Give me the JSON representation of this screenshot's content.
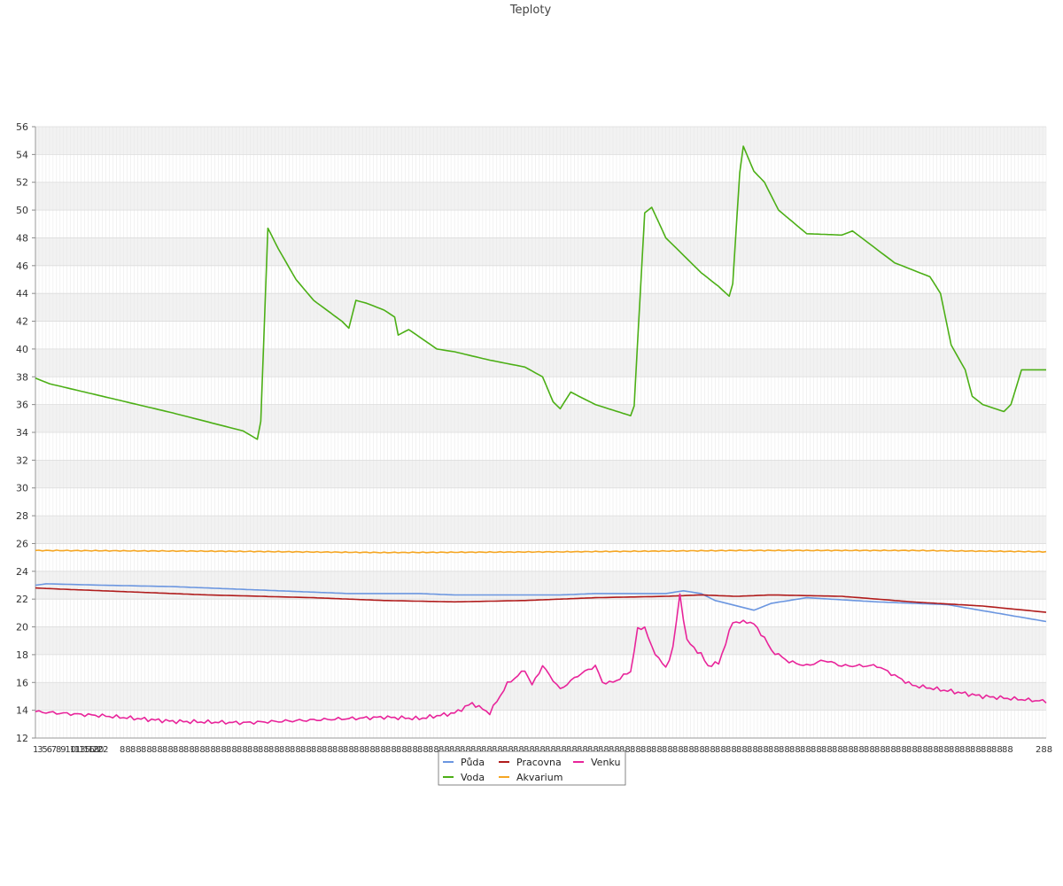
{
  "chart_data": {
    "type": "line",
    "title": "Teploty",
    "xlabel": "",
    "ylabel": "",
    "ylim": [
      12,
      56
    ],
    "yticks": [
      12,
      14,
      16,
      18,
      20,
      22,
      24,
      26,
      28,
      30,
      32,
      34,
      36,
      38,
      40,
      42,
      44,
      46,
      48,
      50,
      52,
      54,
      56
    ],
    "grid": true,
    "legend_position": "bottom",
    "x_points": 288,
    "x_tick_labels": [
      "1",
      "3",
      "5",
      "6",
      "7",
      "8",
      "9",
      "10",
      "11",
      "13",
      "15",
      "16",
      "18",
      "20",
      "22",
      "288"
    ],
    "series": [
      {
        "name": "Půda",
        "color": "#6b96e0",
        "key_points": [
          [
            1,
            23.0
          ],
          [
            4,
            23.1
          ],
          [
            20,
            23.0
          ],
          [
            40,
            22.9
          ],
          [
            60,
            22.7
          ],
          [
            90,
            22.4
          ],
          [
            110,
            22.4
          ],
          [
            120,
            22.3
          ],
          [
            150,
            22.3
          ],
          [
            160,
            22.4
          ],
          [
            180,
            22.4
          ],
          [
            185,
            22.6
          ],
          [
            190,
            22.4
          ],
          [
            194,
            21.9
          ],
          [
            205,
            21.2
          ],
          [
            210,
            21.7
          ],
          [
            220,
            22.1
          ],
          [
            240,
            21.8
          ],
          [
            260,
            21.6
          ],
          [
            290,
            20.3
          ]
        ]
      },
      {
        "name": "Pracovna",
        "color": "#b01c1c",
        "key_points": [
          [
            1,
            22.8
          ],
          [
            10,
            22.7
          ],
          [
            30,
            22.5
          ],
          [
            50,
            22.3
          ],
          [
            80,
            22.1
          ],
          [
            100,
            21.9
          ],
          [
            120,
            21.8
          ],
          [
            140,
            21.9
          ],
          [
            160,
            22.1
          ],
          [
            180,
            22.2
          ],
          [
            190,
            22.3
          ],
          [
            200,
            22.2
          ],
          [
            210,
            22.3
          ],
          [
            230,
            22.2
          ],
          [
            250,
            21.8
          ],
          [
            270,
            21.5
          ],
          [
            290,
            21.0
          ]
        ]
      },
      {
        "name": "Venku",
        "color": "#e8249a",
        "key_points": [
          [
            1,
            13.9
          ],
          [
            20,
            13.6
          ],
          [
            40,
            13.2
          ],
          [
            60,
            13.1
          ],
          [
            80,
            13.3
          ],
          [
            100,
            13.5
          ],
          [
            110,
            13.4
          ],
          [
            120,
            13.8
          ],
          [
            125,
            14.5
          ],
          [
            130,
            13.8
          ],
          [
            135,
            15.9
          ],
          [
            140,
            16.9
          ],
          [
            142,
            15.8
          ],
          [
            145,
            17.2
          ],
          [
            150,
            15.5
          ],
          [
            155,
            16.5
          ],
          [
            160,
            17.2
          ],
          [
            162,
            16.0
          ],
          [
            165,
            16.0
          ],
          [
            170,
            16.8
          ],
          [
            172,
            19.8
          ],
          [
            174,
            20.0
          ],
          [
            176,
            18.5
          ],
          [
            180,
            17.0
          ],
          [
            182,
            18.5
          ],
          [
            184,
            22.3
          ],
          [
            186,
            19.0
          ],
          [
            190,
            18.0
          ],
          [
            192,
            17.2
          ],
          [
            195,
            17.4
          ],
          [
            197,
            18.8
          ],
          [
            199,
            20.4
          ],
          [
            201,
            20.3
          ],
          [
            203,
            20.4
          ],
          [
            205,
            20.2
          ],
          [
            208,
            19.2
          ],
          [
            210,
            18.3
          ],
          [
            215,
            17.5
          ],
          [
            220,
            17.2
          ],
          [
            225,
            17.6
          ],
          [
            230,
            17.2
          ],
          [
            240,
            17.2
          ],
          [
            250,
            15.8
          ],
          [
            260,
            15.4
          ],
          [
            270,
            15.0
          ],
          [
            280,
            14.8
          ],
          [
            290,
            14.6
          ]
        ]
      },
      {
        "name": "Voda",
        "color": "#4caf16",
        "key_points": [
          [
            1,
            37.9
          ],
          [
            5,
            37.5
          ],
          [
            20,
            36.6
          ],
          [
            40,
            35.4
          ],
          [
            60,
            34.1
          ],
          [
            64,
            33.5
          ],
          [
            65,
            34.8
          ],
          [
            67,
            48.7
          ],
          [
            70,
            47.2
          ],
          [
            75,
            45.0
          ],
          [
            80,
            43.5
          ],
          [
            88,
            42.0
          ],
          [
            90,
            41.5
          ],
          [
            92,
            43.5
          ],
          [
            95,
            43.3
          ],
          [
            100,
            42.8
          ],
          [
            103,
            42.3
          ],
          [
            104,
            41.0
          ],
          [
            107,
            41.4
          ],
          [
            115,
            40.0
          ],
          [
            120,
            39.8
          ],
          [
            130,
            39.2
          ],
          [
            140,
            38.7
          ],
          [
            145,
            38.0
          ],
          [
            148,
            36.2
          ],
          [
            150,
            35.7
          ],
          [
            153,
            36.9
          ],
          [
            160,
            36.0
          ],
          [
            170,
            35.2
          ],
          [
            171,
            35.9
          ],
          [
            174,
            49.8
          ],
          [
            176,
            50.2
          ],
          [
            180,
            48.0
          ],
          [
            190,
            45.5
          ],
          [
            195,
            44.5
          ],
          [
            198,
            43.8
          ],
          [
            199,
            44.7
          ],
          [
            201,
            52.7
          ],
          [
            202,
            54.6
          ],
          [
            205,
            52.8
          ],
          [
            208,
            52.0
          ],
          [
            212,
            50.0
          ],
          [
            220,
            48.3
          ],
          [
            230,
            48.2
          ],
          [
            233,
            48.5
          ],
          [
            245,
            46.2
          ],
          [
            255,
            45.2
          ],
          [
            258,
            44.0
          ],
          [
            261,
            40.3
          ],
          [
            265,
            38.5
          ],
          [
            267,
            36.6
          ],
          [
            270,
            36.0
          ],
          [
            276,
            35.5
          ],
          [
            278,
            36.0
          ],
          [
            281,
            38.5
          ],
          [
            290,
            38.5
          ]
        ]
      },
      {
        "name": "Akvarium",
        "color": "#f5a623",
        "key_points": [
          [
            1,
            25.5
          ],
          [
            50,
            25.45
          ],
          [
            100,
            25.35
          ],
          [
            150,
            25.4
          ],
          [
            200,
            25.5
          ],
          [
            250,
            25.5
          ],
          [
            290,
            25.4
          ]
        ]
      }
    ],
    "legend": [
      {
        "name": "Půda",
        "color": "#6b96e0"
      },
      {
        "name": "Pracovna",
        "color": "#b01c1c"
      },
      {
        "name": "Venku",
        "color": "#e8249a"
      },
      {
        "name": "Voda",
        "color": "#4caf16"
      },
      {
        "name": "Akvarium",
        "color": "#f5a623"
      }
    ]
  }
}
